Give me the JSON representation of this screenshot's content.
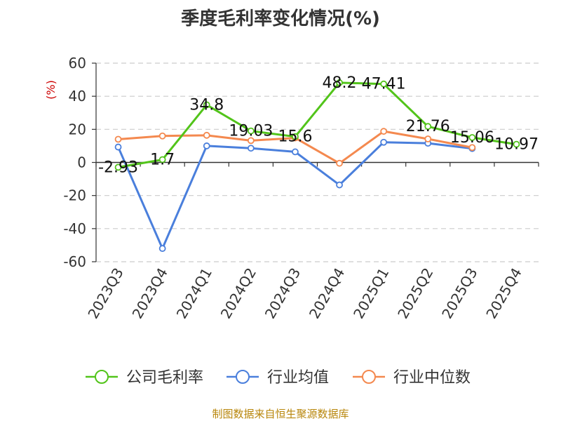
{
  "title": "季度毛利率变化情况(%)",
  "footer": "制图数据来自恒生聚源数据库",
  "chart_data": {
    "type": "line",
    "ylabel": "(%)",
    "ylim": [
      -60,
      60
    ],
    "yticks": [
      60,
      40,
      20,
      0,
      -20,
      -40,
      -60
    ],
    "categories": [
      "2023Q3",
      "2023Q4",
      "2024Q1",
      "2024Q2",
      "2024Q3",
      "2024Q4",
      "2025Q1",
      "2025Q2",
      "2025Q3",
      "2025Q4"
    ],
    "grid": true,
    "legend_position": "bottom",
    "series": [
      {
        "name": "公司毛利率",
        "color": "#52c41a",
        "values": [
          -2.93,
          1.7,
          34.8,
          19.03,
          15.6,
          48.2,
          47.41,
          21.76,
          15.06,
          10.97
        ],
        "labels": [
          "-2.93",
          "1.7",
          "34.8",
          "19.03",
          "15.6",
          "48.2",
          "47.41",
          "21.76",
          "15.06",
          "10.97"
        ]
      },
      {
        "name": "行业均值",
        "color": "#4a7fdc",
        "values": [
          9.3,
          -52.0,
          10.0,
          8.6,
          6.4,
          -13.6,
          12.2,
          11.6,
          8.4,
          null
        ]
      },
      {
        "name": "行业中位数",
        "color": "#f4894f",
        "values": [
          14.0,
          16.0,
          16.4,
          13.2,
          14.8,
          -0.5,
          18.8,
          14.2,
          9.0,
          null
        ]
      }
    ]
  }
}
